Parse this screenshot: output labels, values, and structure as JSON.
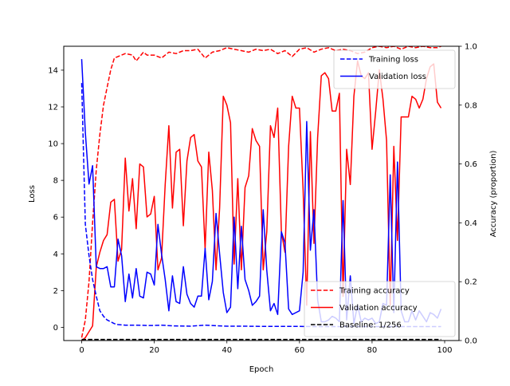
{
  "chart_data": {
    "type": "line",
    "title": "",
    "xlabel": "Epoch",
    "ylabel_left": "Loss",
    "ylabel_right": "Accuracy (proportion)",
    "xlim": [
      -4.95,
      103.95
    ],
    "ylim_left": [
      -0.72,
      15.3
    ],
    "ylim_right": [
      0.0,
      1.0
    ],
    "x_ticks": [
      0,
      20,
      40,
      60,
      80,
      100
    ],
    "y_ticks_left": [
      0,
      2,
      4,
      6,
      8,
      10,
      12,
      14
    ],
    "y_ticks_right": [
      0.0,
      0.2,
      0.4,
      0.6,
      0.8,
      1.0
    ],
    "grid": false,
    "legends": [
      {
        "placement": "upper right",
        "entries": [
          "Training loss",
          "Validation loss"
        ]
      },
      {
        "placement": "lower right",
        "entries": [
          "Training accuracy",
          "Validation accuracy",
          "Baseline: 1/256"
        ]
      }
    ],
    "series": [
      {
        "name": "Training loss",
        "axis": "left",
        "color": "#0000ff",
        "dash": true,
        "x": [
          0,
          1,
          2,
          3,
          4,
          5,
          6,
          7,
          8,
          9,
          10,
          12,
          15,
          18,
          20,
          22,
          25,
          30,
          34,
          38,
          40,
          45,
          50,
          55,
          60,
          65,
          70,
          75,
          80,
          85,
          90,
          95,
          99
        ],
        "y": [
          13.3,
          5.6,
          3.9,
          2.6,
          1.7,
          0.9,
          0.6,
          0.4,
          0.3,
          0.2,
          0.15,
          0.12,
          0.12,
          0.1,
          0.1,
          0.12,
          0.08,
          0.06,
          0.12,
          0.08,
          0.06,
          0.06,
          0.05,
          0.05,
          0.05,
          0.04,
          0.04,
          0.04,
          0.04,
          0.04,
          0.04,
          0.04,
          0.04
        ]
      },
      {
        "name": "Validation loss",
        "axis": "left",
        "color": "#0000ff",
        "dash": false,
        "x": [
          0,
          1,
          2,
          3,
          4,
          5,
          6,
          7,
          8,
          9,
          10,
          11,
          12,
          13,
          14,
          15,
          16,
          17,
          18,
          19,
          20,
          21,
          22,
          23,
          24,
          25,
          26,
          27,
          28,
          29,
          30,
          31,
          32,
          33,
          34,
          35,
          36,
          37,
          38,
          39,
          40,
          41,
          42,
          43,
          44,
          45,
          46,
          47,
          48,
          49,
          50,
          51,
          52,
          53,
          54,
          55,
          56,
          57,
          58,
          59,
          60,
          61,
          62,
          63,
          64,
          65,
          66,
          67,
          68,
          69,
          70,
          71,
          72,
          73,
          74,
          75,
          76,
          77,
          78,
          79,
          80,
          81,
          82,
          83,
          84,
          85,
          86,
          87,
          88,
          89,
          90,
          91,
          92,
          93,
          94,
          95,
          96,
          97,
          98,
          99
        ],
        "y": [
          14.6,
          10.6,
          7.8,
          8.8,
          3.3,
          3.2,
          3.2,
          3.3,
          2.2,
          2.2,
          4.8,
          3.9,
          1.4,
          2.9,
          1.6,
          3.2,
          1.7,
          1.6,
          3.0,
          2.9,
          2.3,
          5.6,
          4.0,
          2.6,
          0.9,
          2.8,
          1.4,
          1.3,
          3.3,
          1.8,
          1.3,
          1.1,
          1.7,
          1.7,
          4.3,
          1.5,
          2.5,
          6.2,
          4.0,
          1.9,
          0.8,
          1.1,
          6.0,
          2.1,
          5.5,
          2.6,
          2.0,
          1.2,
          1.4,
          1.7,
          6.4,
          3.1,
          0.9,
          1.3,
          0.7,
          5.2,
          4.6,
          1.0,
          0.7,
          0.8,
          0.9,
          3.0,
          11.2,
          4.2,
          6.4,
          1.5,
          0.3,
          0.3,
          0.4,
          0.6,
          0.5,
          0.3,
          6.9,
          0.4,
          2.8,
          0.2,
          1.2,
          0.3,
          0.5,
          0.4,
          0.5,
          0.2,
          0.3,
          1.3,
          1.2,
          8.3,
          0.8,
          9.0,
          0.9,
          0.3,
          0.3,
          0.9,
          0.4,
          0.9,
          0.6,
          0.3,
          0.8,
          0.7,
          0.5,
          1.0
        ]
      },
      {
        "name": "Training accuracy",
        "axis": "right",
        "color": "#ff0000",
        "dash": true,
        "x": [
          0,
          1,
          2,
          3,
          4,
          5,
          6,
          7,
          8,
          9,
          10,
          12,
          14,
          15,
          17,
          18,
          20,
          22,
          24,
          26,
          28,
          30,
          32,
          34,
          36,
          38,
          40,
          42,
          44,
          46,
          48,
          50,
          52,
          54,
          56,
          58,
          60,
          62,
          64,
          66,
          68,
          70,
          72,
          74,
          76,
          78,
          80,
          82,
          84,
          86,
          88,
          90,
          92,
          94,
          96,
          98,
          99
        ],
        "y": [
          0.01,
          0.07,
          0.2,
          0.4,
          0.58,
          0.7,
          0.8,
          0.86,
          0.92,
          0.96,
          0.965,
          0.975,
          0.97,
          0.95,
          0.98,
          0.97,
          0.97,
          0.96,
          0.98,
          0.975,
          0.985,
          0.985,
          0.99,
          0.96,
          0.98,
          0.985,
          0.995,
          0.99,
          0.985,
          0.98,
          0.99,
          0.985,
          0.99,
          0.975,
          0.985,
          0.965,
          0.99,
          0.995,
          0.98,
          0.99,
          0.995,
          0.985,
          0.99,
          0.985,
          0.975,
          0.98,
          0.995,
          1.0,
          0.995,
          1.0,
          0.99,
          1.0,
          0.995,
          1.0,
          0.995,
          0.995,
          1.0
        ]
      },
      {
        "name": "Validation accuracy",
        "axis": "right",
        "color": "#ff0000",
        "dash": false,
        "x": [
          0,
          1,
          2,
          3,
          4,
          5,
          6,
          7,
          8,
          9,
          10,
          11,
          12,
          13,
          14,
          15,
          16,
          17,
          18,
          19,
          20,
          21,
          22,
          23,
          24,
          25,
          26,
          27,
          28,
          29,
          30,
          31,
          32,
          33,
          34,
          35,
          36,
          37,
          38,
          39,
          40,
          41,
          42,
          43,
          44,
          45,
          46,
          47,
          48,
          49,
          50,
          51,
          52,
          53,
          54,
          55,
          56,
          57,
          58,
          59,
          60,
          61,
          62,
          63,
          64,
          65,
          66,
          67,
          68,
          69,
          70,
          71,
          72,
          73,
          74,
          75,
          76,
          77,
          78,
          79,
          80,
          81,
          82,
          83,
          84,
          85,
          86,
          87,
          88,
          89,
          90,
          91,
          92,
          93,
          94,
          95,
          96,
          97,
          98,
          99
        ],
        "y": [
          0.0,
          0.01,
          0.03,
          0.05,
          0.25,
          0.3,
          0.34,
          0.36,
          0.47,
          0.48,
          0.27,
          0.31,
          0.62,
          0.44,
          0.55,
          0.38,
          0.6,
          0.59,
          0.42,
          0.43,
          0.49,
          0.24,
          0.28,
          0.53,
          0.73,
          0.45,
          0.64,
          0.65,
          0.39,
          0.61,
          0.69,
          0.7,
          0.61,
          0.59,
          0.31,
          0.64,
          0.51,
          0.24,
          0.45,
          0.83,
          0.8,
          0.74,
          0.26,
          0.55,
          0.24,
          0.52,
          0.56,
          0.72,
          0.68,
          0.66,
          0.24,
          0.37,
          0.73,
          0.69,
          0.79,
          0.37,
          0.3,
          0.66,
          0.83,
          0.79,
          0.79,
          0.51,
          0.12,
          0.71,
          0.33,
          0.69,
          0.9,
          0.91,
          0.89,
          0.78,
          0.78,
          0.84,
          0.15,
          0.65,
          0.53,
          0.83,
          0.95,
          0.9,
          0.89,
          0.91,
          0.65,
          0.78,
          0.92,
          0.82,
          0.68,
          0.12,
          0.66,
          0.34,
          0.76,
          0.76,
          0.76,
          0.83,
          0.82,
          0.79,
          0.82,
          0.89,
          0.93,
          0.94,
          0.81,
          0.79
        ]
      },
      {
        "name": "Baseline: 1/256",
        "axis": "right",
        "color": "#000000",
        "dash": true,
        "x": [
          0,
          99
        ],
        "y": [
          0.0039,
          0.0039
        ]
      }
    ]
  }
}
